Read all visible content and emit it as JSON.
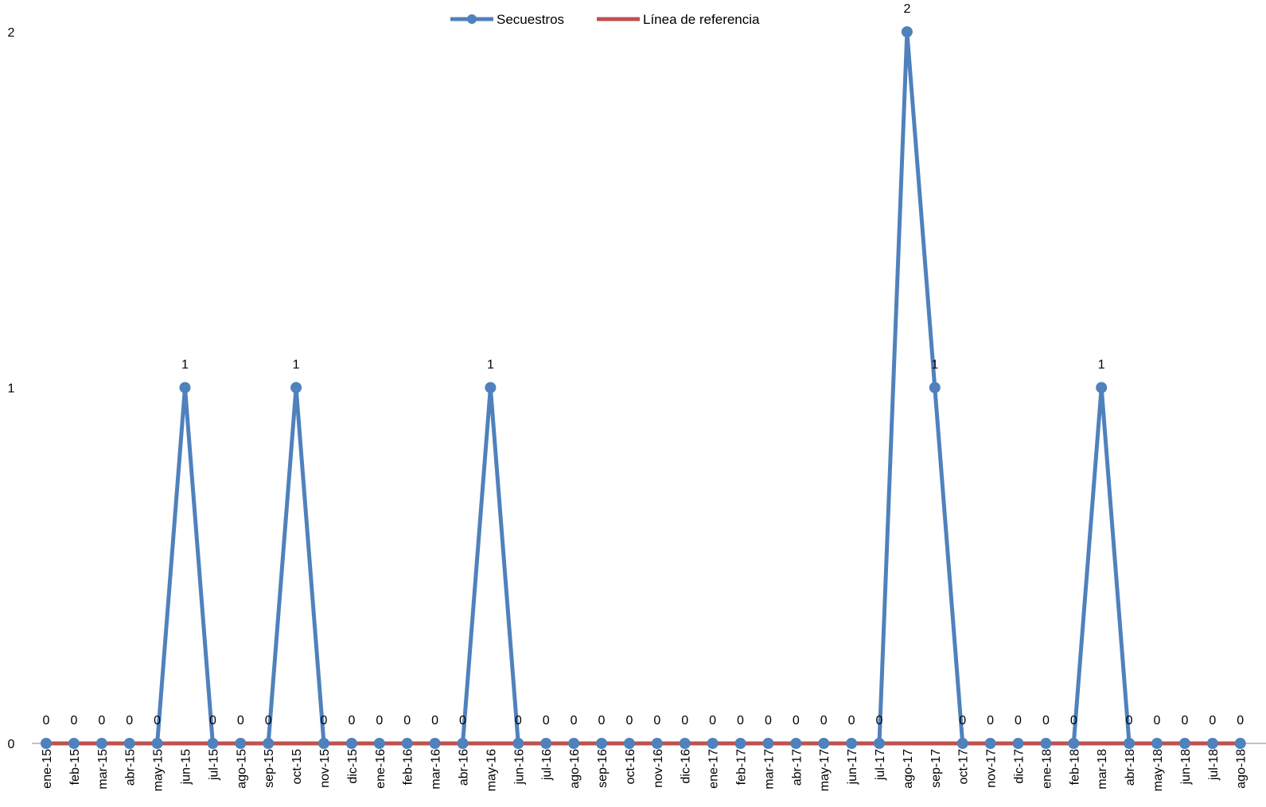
{
  "chart_data": {
    "type": "line",
    "title": "",
    "xlabel": "",
    "ylabel": "",
    "ylim": [
      0,
      2
    ],
    "yticks": [
      0,
      1,
      2
    ],
    "grid": false,
    "legend_position": "top-center",
    "categories": [
      "ene-15",
      "feb-15",
      "mar-15",
      "abr-15",
      "may-15",
      "jun-15",
      "jul-15",
      "ago-15",
      "sep-15",
      "oct-15",
      "nov-15",
      "dic-15",
      "ene-16",
      "feb-16",
      "mar-16",
      "abr-16",
      "may-16",
      "jun-16",
      "jul-16",
      "ago-16",
      "sep-16",
      "oct-16",
      "nov-16",
      "dic-16",
      "ene-17",
      "feb-17",
      "mar-17",
      "abr-17",
      "may-17",
      "jun-17",
      "jul-17",
      "ago-17",
      "sep-17",
      "oct-17",
      "nov-17",
      "dic-17",
      "ene-18",
      "feb-18",
      "mar-18",
      "abr-18",
      "may-18",
      "jun-18",
      "jul-18",
      "ago-18"
    ],
    "series": [
      {
        "name": "Secuestros",
        "color": "#4F81BD",
        "marker": "circle",
        "data_labels": true,
        "values": [
          0,
          0,
          0,
          0,
          0,
          1,
          0,
          0,
          0,
          1,
          0,
          0,
          0,
          0,
          0,
          0,
          1,
          0,
          0,
          0,
          0,
          0,
          0,
          0,
          0,
          0,
          0,
          0,
          0,
          0,
          0,
          2,
          1,
          0,
          0,
          0,
          0,
          0,
          1,
          0,
          0,
          0,
          0,
          0
        ]
      },
      {
        "name": "Línea de referencia",
        "color": "#C0504D",
        "marker": "none",
        "data_labels": false,
        "values": [
          0,
          0,
          0,
          0,
          0,
          0,
          0,
          0,
          0,
          0,
          0,
          0,
          0,
          0,
          0,
          0,
          0,
          0,
          0,
          0,
          0,
          0,
          0,
          0,
          0,
          0,
          0,
          0,
          0,
          0,
          0,
          0,
          0,
          0,
          0,
          0,
          0,
          0,
          0,
          0,
          0,
          0,
          0,
          0
        ]
      }
    ]
  }
}
